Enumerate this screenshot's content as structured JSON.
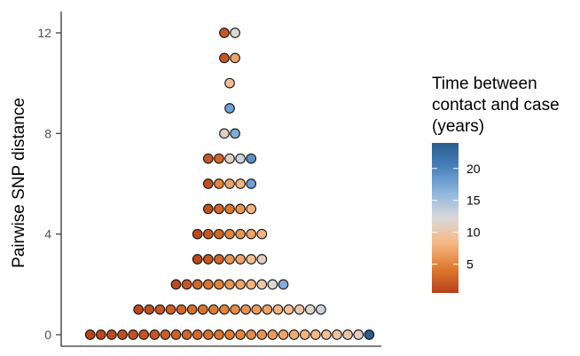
{
  "chart_data": {
    "type": "dotplot",
    "ylabel": "Pairwise SNP distance",
    "y_ticks": [
      0,
      4,
      8,
      12
    ],
    "ylim": [
      0,
      12
    ],
    "grid": false,
    "legend": {
      "title_lines": [
        "Time between",
        "contact and case",
        "(years)"
      ],
      "type": "colorbar",
      "ticks": [
        5,
        10,
        15,
        20
      ],
      "range": [
        0.5,
        24
      ],
      "colors": [
        "#b7411b",
        "#e07b2e",
        "#f7b886",
        "#d9d9d9",
        "#8fb6de",
        "#4a83bd",
        "#2a5d8f"
      ],
      "placement": "right"
    },
    "rows": [
      {
        "snp": 0,
        "times": [
          0.8,
          1,
          1.2,
          1.4,
          1.6,
          1.8,
          2,
          2.3,
          2.6,
          3,
          3.3,
          3.6,
          4,
          4.5,
          5,
          5.5,
          6,
          6.5,
          7,
          7.5,
          8,
          8.5,
          9,
          9.5,
          10,
          11,
          24
        ]
      },
      {
        "snp": 1,
        "times": [
          1,
          1.5,
          2,
          2.5,
          3,
          3.5,
          4,
          4.5,
          5,
          5.5,
          6,
          6.5,
          7,
          8,
          9,
          10,
          11.5,
          13
        ]
      },
      {
        "snp": 2,
        "times": [
          1,
          2,
          3,
          4,
          5,
          6,
          7,
          8,
          10,
          12,
          17
        ]
      },
      {
        "snp": 3,
        "times": [
          1,
          2,
          3,
          6,
          7,
          9,
          11
        ]
      },
      {
        "snp": 4,
        "times": [
          1,
          2,
          3,
          5,
          6,
          7,
          8
        ]
      },
      {
        "snp": 5,
        "times": [
          1.5,
          3,
          4,
          6,
          8
        ]
      },
      {
        "snp": 6,
        "times": [
          1.5,
          5,
          7,
          8,
          18
        ]
      },
      {
        "snp": 7,
        "times": [
          2,
          3,
          11,
          13,
          19
        ]
      },
      {
        "snp": 8,
        "times": [
          11,
          17
        ]
      },
      {
        "snp": 9,
        "times": [
          18
        ]
      },
      {
        "snp": 10,
        "times": [
          9
        ]
      },
      {
        "snp": 11,
        "times": [
          2,
          7
        ]
      },
      {
        "snp": 12,
        "times": [
          2,
          12
        ]
      }
    ]
  }
}
